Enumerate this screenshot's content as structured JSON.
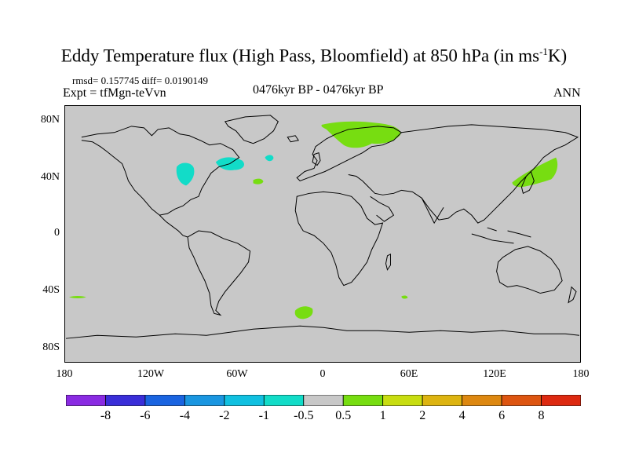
{
  "header": {
    "title_main": "Eddy Temperature flux (High Pass, Bloomfield) at 850 hPa (in ms",
    "title_sup": "-1",
    "title_end": "K)",
    "stats": "rmsd= 0.157745  diff= 0.0190149",
    "expt": "Expt = tfMgn-teVvn",
    "period": "0476kyr BP - 0476kyr BP",
    "season": "ANN"
  },
  "axes": {
    "lat_labels": [
      "80N",
      "40N",
      "0",
      "40S",
      "80S"
    ],
    "lon_labels": [
      "180",
      "120W",
      "60W",
      "0",
      "60E",
      "120E",
      "180"
    ]
  },
  "colorbar": {
    "colors": [
      "#8a2be2",
      "#3a2ed8",
      "#1a64e0",
      "#1a96e0",
      "#11c0e0",
      "#12dcc8",
      "#c8c8c8",
      "#77dd11",
      "#c8dd11",
      "#ddb411",
      "#dd8811",
      "#dd5511",
      "#dd2a11"
    ],
    "tick_labels": [
      "-8",
      "-6",
      "-4",
      "-2",
      "-1",
      "-0.5",
      "0.5",
      "1",
      "2",
      "4",
      "6",
      "8"
    ]
  },
  "map_colors": {
    "background": "#c8c8c8",
    "coast": "#000000",
    "positive_patch": "#77dd11",
    "negative_patch": "#12dcc8"
  }
}
